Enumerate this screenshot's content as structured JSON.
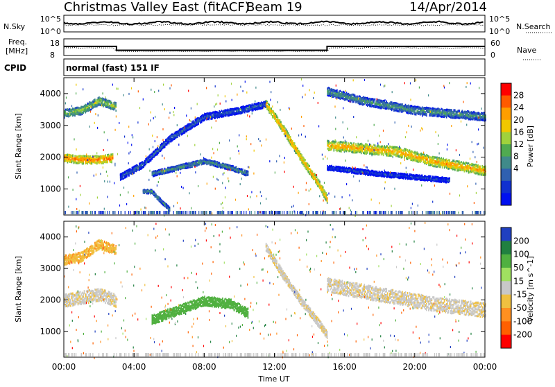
{
  "header": {
    "title": "Christmas Valley East (fitACF)",
    "beam": "Beam 19",
    "date": "14/Apr/2014"
  },
  "noise_panel": {
    "left_label": "N.Sky",
    "right_label": "N.Search",
    "left_ticks": [
      "10^5",
      "10^0"
    ],
    "right_ticks": [
      "10^5",
      "10^0"
    ]
  },
  "freq_panel": {
    "left_label_1": "Freq.",
    "left_label_2": "[MHz]",
    "left_ticks": [
      "18",
      "8"
    ],
    "right_label": "Nave",
    "right_ticks": [
      "60",
      "0"
    ]
  },
  "cpid": {
    "label": "CPID",
    "value": "normal (fast) 151 IF"
  },
  "power_panel": {
    "ylabel": "Slant Range [km]",
    "yticks": [
      "4000",
      "3000",
      "2000",
      "1000"
    ],
    "colorbar_label": "Power [dB]",
    "colorbar_ticks": [
      "28",
      "24",
      "20",
      "16",
      "12",
      "8",
      "4"
    ],
    "colorbar_colors": [
      "#ff0000",
      "#ff5a00",
      "#ff9e00",
      "#f0c800",
      "#a0d23c",
      "#50aa50",
      "#408a8a",
      "#3060b0",
      "#1030d0",
      "#0010f0"
    ]
  },
  "velocity_panel": {
    "ylabel": "Slant Range [km]",
    "yticks": [
      "4000",
      "3000",
      "2000",
      "1000"
    ],
    "colorbar_label": "Velocity [m s^-1]",
    "colorbar_ticks": [
      "200",
      "100",
      "50",
      "15",
      "-15",
      "-50",
      "-100",
      "-200"
    ],
    "colorbar_colors": [
      "#2040c0",
      "#208040",
      "#50b040",
      "#a0e060",
      "#c8c8c8",
      "#f0c040",
      "#ff9020",
      "#ff6000",
      "#ff0000"
    ]
  },
  "xaxis": {
    "label": "Time UT",
    "ticks": [
      "00:00",
      "04:00",
      "08:00",
      "12:00",
      "16:00",
      "20:00",
      "00:00"
    ]
  },
  "chart_data": {
    "type": "heatmap",
    "title": "Christmas Valley East (fitACF)",
    "xlabel": "Time UT",
    "ylabel": "Slant Range [km]",
    "xlim": [
      0,
      24
    ],
    "ylim": [
      180,
      4500
    ],
    "freq_mhz_segments": [
      {
        "start": 0,
        "end": 3.0,
        "value": 14.5
      },
      {
        "start": 3.0,
        "end": 15.0,
        "value": 10.5
      },
      {
        "start": 15.0,
        "end": 24.0,
        "value": 14.5
      }
    ],
    "power_bands": [
      {
        "name": "low-E",
        "points": [
          [
            4.5,
            950
          ],
          [
            5.0,
            950
          ],
          [
            5.5,
            650
          ],
          [
            6.0,
            400
          ]
        ],
        "width": 120,
        "dB": 14
      },
      {
        "name": "morning-F",
        "points": [
          [
            0,
            2000
          ],
          [
            1,
            1950
          ],
          [
            2,
            1950
          ],
          [
            2.8,
            2000
          ]
        ],
        "width": 250,
        "dB": 26
      },
      {
        "name": "morning-upper",
        "points": [
          [
            0,
            3400
          ],
          [
            1,
            3500
          ],
          [
            2,
            3800
          ],
          [
            3,
            3600
          ]
        ],
        "width": 250,
        "dB": 18
      },
      {
        "name": "rise-arc",
        "points": [
          [
            3.2,
            1400
          ],
          [
            4.5,
            1800
          ],
          [
            6.0,
            2600
          ],
          [
            8.0,
            3300
          ],
          [
            10.0,
            3500
          ],
          [
            11.5,
            3700
          ]
        ],
        "width": 200,
        "dB": 10
      },
      {
        "name": "mid-band",
        "points": [
          [
            5.0,
            1500
          ],
          [
            6.5,
            1700
          ],
          [
            8.0,
            1900
          ],
          [
            9.5,
            1700
          ],
          [
            10.5,
            1500
          ]
        ],
        "width": 150,
        "dB": 14
      },
      {
        "name": "descending",
        "points": [
          [
            11.5,
            3700
          ],
          [
            12.5,
            2900
          ],
          [
            13.5,
            2000
          ],
          [
            14.5,
            1200
          ],
          [
            15.0,
            700
          ]
        ],
        "width": 250,
        "dB": 24
      },
      {
        "name": "evening-F",
        "points": [
          [
            15.0,
            2400
          ],
          [
            17.0,
            2300
          ],
          [
            19.0,
            2200
          ],
          [
            21.0,
            1900
          ],
          [
            24.0,
            1600
          ]
        ],
        "width": 300,
        "dB": 24
      },
      {
        "name": "evening-upper",
        "points": [
          [
            15.0,
            4100
          ],
          [
            17.0,
            3800
          ],
          [
            20.0,
            3500
          ],
          [
            24.0,
            3300
          ]
        ],
        "width": 250,
        "dB": 14
      },
      {
        "name": "evening-low",
        "points": [
          [
            15.0,
            1700
          ],
          [
            18.0,
            1500
          ],
          [
            20.0,
            1400
          ],
          [
            22.0,
            1300
          ]
        ],
        "width": 150,
        "dB": 8
      }
    ],
    "velocity_bands": [
      {
        "name": "morning",
        "points": [
          [
            0,
            2000
          ],
          [
            1,
            2100
          ],
          [
            2,
            2200
          ],
          [
            3,
            2000
          ]
        ],
        "width": 400,
        "velocity": -5
      },
      {
        "name": "morning-upper",
        "points": [
          [
            0,
            3300
          ],
          [
            1,
            3400
          ],
          [
            2,
            3800
          ],
          [
            3,
            3600
          ]
        ],
        "width": 300,
        "velocity": -40
      },
      {
        "name": "mid-positive",
        "points": [
          [
            5.0,
            1400
          ],
          [
            6.5,
            1700
          ],
          [
            8.0,
            2000
          ],
          [
            9.5,
            1900
          ],
          [
            10.5,
            1600
          ]
        ],
        "width": 300,
        "velocity": 80
      },
      {
        "name": "descending",
        "points": [
          [
            11.5,
            3700
          ],
          [
            12.5,
            2800
          ],
          [
            13.5,
            2000
          ],
          [
            14.5,
            1300
          ],
          [
            15.0,
            900
          ]
        ],
        "width": 250,
        "velocity": -5
      },
      {
        "name": "evening",
        "points": [
          [
            15.0,
            2500
          ],
          [
            18.0,
            2200
          ],
          [
            21.0,
            1900
          ],
          [
            24.0,
            1700
          ]
        ],
        "width": 450,
        "velocity": -5
      }
    ]
  }
}
